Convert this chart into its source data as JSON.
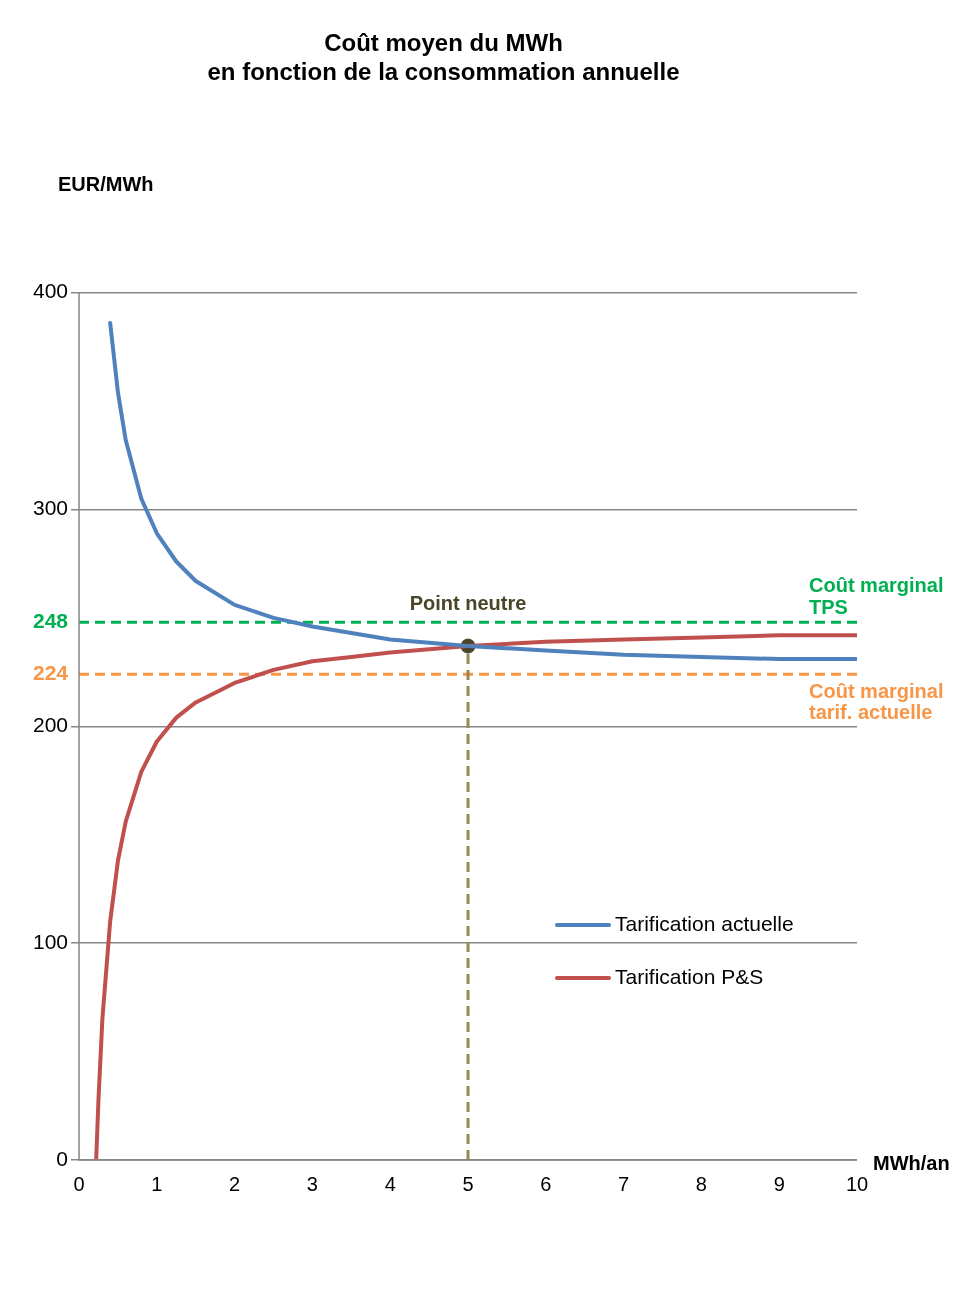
{
  "chart_data": {
    "type": "line",
    "title": "Coût moyen du MWh\nen fonction de la consommation annuelle",
    "xlabel": "MWh/an",
    "ylabel": "EUR/MWh",
    "xlim": [
      0,
      10
    ],
    "xticks": [
      0,
      1,
      2,
      3,
      4,
      5,
      6,
      7,
      8,
      9,
      10
    ],
    "ylim": [
      0,
      400
    ],
    "yticks": [
      0,
      100,
      200,
      224,
      248,
      300,
      400
    ],
    "grid": "y",
    "legend": "bottom right",
    "marker": "none",
    "line_style": "solid",
    "series": [
      {
        "name": "Tarification actuelle",
        "color": "#4f81bd",
        "x": [
          0.4,
          0.5,
          0.6,
          0.8,
          1,
          1.25,
          1.5,
          2,
          2.5,
          3,
          3.5,
          4,
          5,
          6,
          7,
          8,
          9,
          10
        ],
        "values": [
          386,
          354,
          332,
          305,
          289,
          276,
          267,
          256,
          250,
          246,
          243,
          240,
          237,
          235,
          233,
          232,
          231,
          231
        ]
      },
      {
        "name": "Tarification P&S",
        "color": "#c0504d",
        "x": [
          0.22,
          0.25,
          0.3,
          0.4,
          0.5,
          0.6,
          0.8,
          1,
          1.25,
          1.5,
          2,
          2.5,
          3,
          3.5,
          4,
          5,
          6,
          7,
          8,
          9,
          10
        ],
        "values": [
          0,
          28,
          65,
          110,
          138,
          156,
          179,
          193,
          204,
          211,
          220,
          226,
          230,
          232,
          234,
          237,
          239,
          240,
          241,
          242,
          242
        ]
      },
      {
        "type": "scatter",
        "color": "#4a4526",
        "x": [
          5
        ],
        "values": [
          237
        ],
        "marker": "circle"
      }
    ],
    "ref_lines": [
      {
        "axis": "y",
        "value": 248,
        "label": "Coût marginal\nTPS",
        "color": "#00b050",
        "line_style": "dashed"
      },
      {
        "axis": "y",
        "value": 224,
        "label": "Coût marginal\ntarif. actuelle",
        "color": "#f79646",
        "line_style": "dashed"
      },
      {
        "axis": "x",
        "value": 5,
        "color": "#948a54",
        "line_style": "dashed"
      }
    ],
    "annotations": [
      {
        "text": "Point neutre",
        "x": 5,
        "y": 237
      }
    ]
  }
}
